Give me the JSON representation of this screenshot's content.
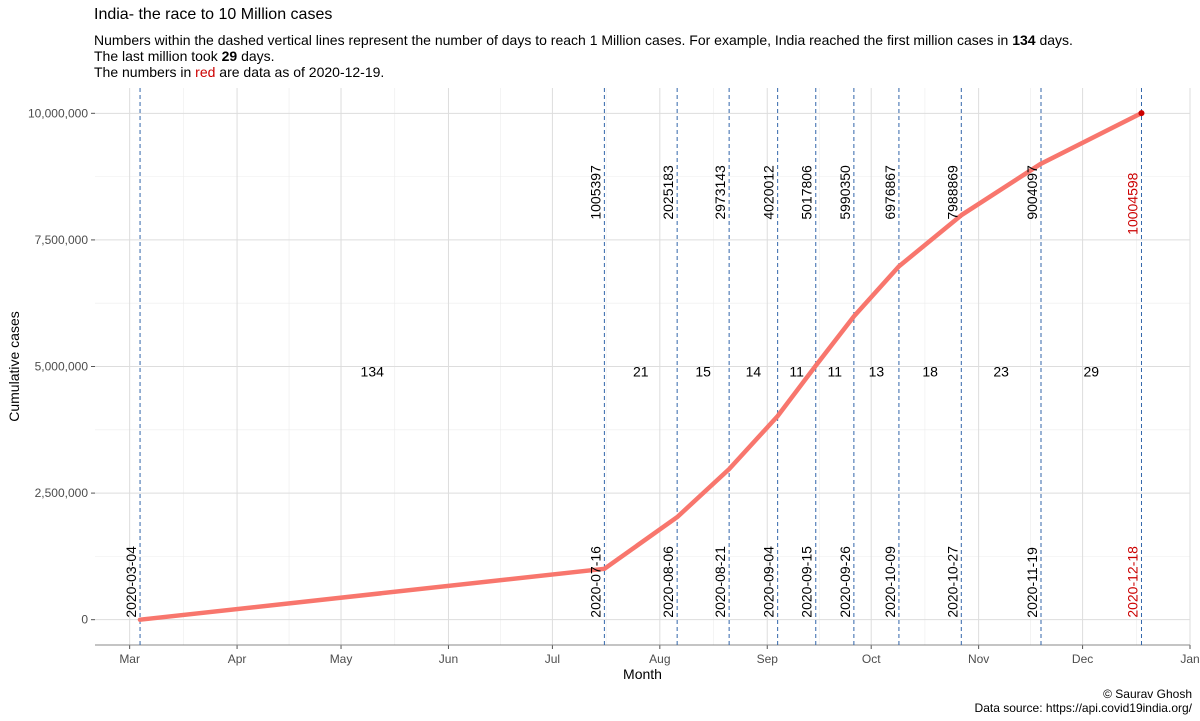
{
  "title": "India- the race to 10 Million cases",
  "subtitle": {
    "line1_pre": "Numbers within the dashed vertical lines represent the number of days to reach 1 Million cases. For example, India reached the first million cases in ",
    "line1_bold": "134",
    "line1_post": " days.",
    "line2_pre": "The last million took ",
    "line2_bold": "29",
    "line2_post": " days.",
    "line3_pre": "The numbers in ",
    "line3_red": "red",
    "line3_post": " are data as of 2020-12-19."
  },
  "footer": {
    "credit": "© Saurav Ghosh",
    "source": "Data source: https://api.covid19india.org/"
  },
  "colors": {
    "line": "#f8766d",
    "vline": "#3366aa",
    "highlight": "#cc0000",
    "grid": "#dddddd"
  },
  "chart_data": {
    "type": "line",
    "xlabel": "Month",
    "ylabel": "Cumulative cases",
    "x_ticks": [
      "Mar",
      "Apr",
      "May",
      "Jun",
      "Jul",
      "Aug",
      "Sep",
      "Oct",
      "Nov",
      "Dec",
      "Jan"
    ],
    "x_tick_dates": [
      "2020-03-01",
      "2020-04-01",
      "2020-05-01",
      "2020-06-01",
      "2020-07-01",
      "2020-08-01",
      "2020-09-01",
      "2020-10-01",
      "2020-11-01",
      "2020-12-01",
      "2021-01-01"
    ],
    "xlim": [
      "2020-02-20",
      "2021-01-01"
    ],
    "y_ticks": [
      0,
      2500000,
      5000000,
      7500000,
      10000000
    ],
    "y_tick_labels": [
      "0",
      "2,500,000",
      "5,000,000",
      "7,500,000",
      "10,000,000"
    ],
    "ylim": [
      -500000,
      10500000
    ],
    "grid": true,
    "series": [
      {
        "x": [
          "2020-03-04",
          "2020-07-16",
          "2020-08-06",
          "2020-08-21",
          "2020-09-04",
          "2020-09-15",
          "2020-09-26",
          "2020-10-09",
          "2020-10-27",
          "2020-11-19",
          "2020-12-18"
        ],
        "values": [
          0,
          1005397,
          2025183,
          2973143,
          4020012,
          5017806,
          5990350,
          6976867,
          7988869,
          9004097,
          10004598
        ]
      }
    ],
    "milestones": [
      {
        "date": "2020-03-04",
        "cases": "",
        "latest": false
      },
      {
        "date": "2020-07-16",
        "cases": "1005397",
        "latest": false
      },
      {
        "date": "2020-08-06",
        "cases": "2025183",
        "latest": false
      },
      {
        "date": "2020-08-21",
        "cases": "2973143",
        "latest": false
      },
      {
        "date": "2020-09-04",
        "cases": "4020012",
        "latest": false
      },
      {
        "date": "2020-09-15",
        "cases": "5017806",
        "latest": false
      },
      {
        "date": "2020-09-26",
        "cases": "5990350",
        "latest": false
      },
      {
        "date": "2020-10-09",
        "cases": "6976867",
        "latest": false
      },
      {
        "date": "2020-10-27",
        "cases": "7988869",
        "latest": false
      },
      {
        "date": "2020-11-19",
        "cases": "9004097",
        "latest": false
      },
      {
        "date": "2020-12-18",
        "cases": "10004598",
        "latest": true
      }
    ],
    "day_counts": [
      "134",
      "21",
      "15",
      "14",
      "11",
      "11",
      "13",
      "18",
      "23",
      "29"
    ],
    "day_count_y": 4900000
  }
}
